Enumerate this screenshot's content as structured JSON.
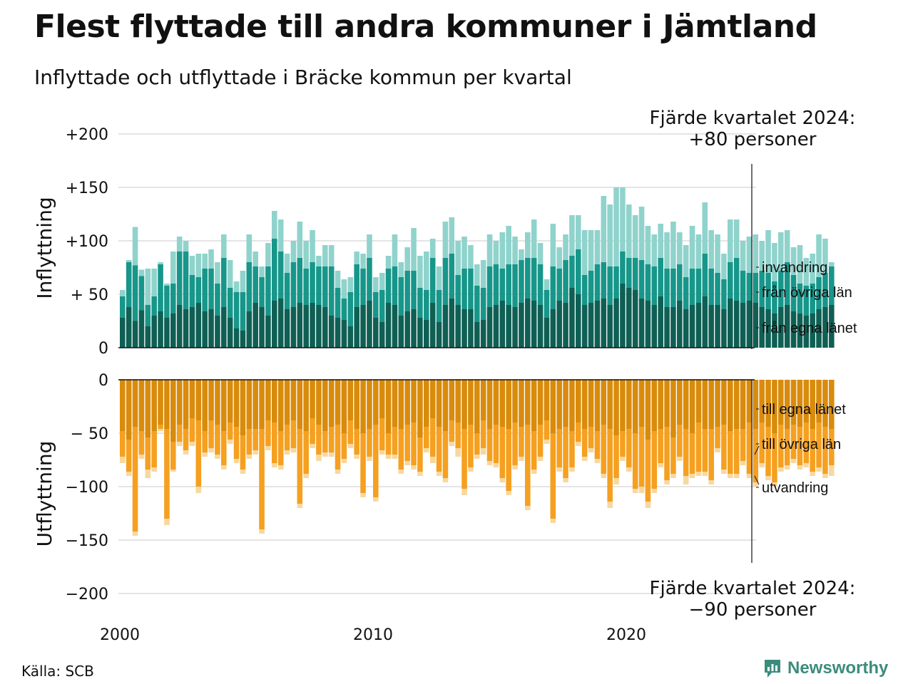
{
  "title": "Flest flyttade till andra kommuner i Jämtland",
  "subtitle": "Inflyttade och utflyttade i Bräcke kommun per kvartal",
  "source": "Källa: SCB",
  "brand": "Newsworthy",
  "colors": {
    "in_egna": "#0f5f54",
    "in_ovriga": "#17968a",
    "in_invandring": "#8fd3cc",
    "out_egna": "#d98b0c",
    "out_ovriga": "#f5a020",
    "out_utvandring": "#f8d8a0",
    "brand": "#3b8c7c"
  },
  "chart_data": {
    "type": "bar",
    "stacked": true,
    "x_start": 2000,
    "x_step": 0.25,
    "x_ticks": [
      "2000",
      "2010",
      "2020"
    ],
    "upper": {
      "ylabel": "Inflyttning",
      "ylim": [
        0,
        200
      ],
      "y_ticks": [
        "0",
        "+ 50",
        "+100",
        "+150",
        "+200"
      ],
      "annotation": "Fjärde kvartalet 2024:\n+80 personer",
      "series": [
        {
          "name": "från egna länet",
          "values": [
            28,
            38,
            25,
            35,
            20,
            30,
            34,
            28,
            32,
            40,
            36,
            38,
            42,
            34,
            36,
            30,
            38,
            28,
            18,
            16,
            34,
            42,
            38,
            30,
            44,
            46,
            36,
            38,
            42,
            40,
            42,
            40,
            38,
            30,
            28,
            26,
            20,
            38,
            40,
            44,
            28,
            24,
            42,
            40,
            30,
            34,
            36,
            28,
            26,
            42,
            24,
            40,
            46,
            40,
            36,
            36,
            24,
            26,
            38,
            40,
            44,
            40,
            38,
            42,
            46,
            44,
            40,
            28,
            36,
            44,
            42,
            56,
            50,
            40,
            42,
            44,
            46,
            40,
            46,
            60,
            56,
            54,
            46,
            44,
            40,
            48,
            38,
            38,
            44,
            36,
            40,
            42,
            48,
            40,
            40,
            36,
            46,
            44,
            42,
            44,
            42,
            38,
            36,
            32,
            38,
            40,
            34,
            32,
            30,
            32,
            36,
            38,
            40
          ]
        },
        {
          "name": "från övriga län",
          "values": [
            20,
            42,
            52,
            32,
            20,
            18,
            44,
            30,
            28,
            50,
            54,
            30,
            24,
            40,
            38,
            30,
            46,
            28,
            34,
            36,
            46,
            34,
            28,
            46,
            58,
            44,
            34,
            42,
            42,
            34,
            38,
            36,
            38,
            46,
            28,
            20,
            32,
            40,
            34,
            40,
            24,
            30,
            32,
            36,
            36,
            38,
            36,
            28,
            28,
            42,
            30,
            44,
            42,
            28,
            38,
            38,
            34,
            30,
            38,
            38,
            30,
            38,
            40,
            40,
            38,
            40,
            38,
            26,
            40,
            30,
            40,
            30,
            42,
            28,
            30,
            34,
            34,
            36,
            30,
            30,
            28,
            30,
            36,
            34,
            36,
            36,
            36,
            36,
            34,
            30,
            34,
            32,
            40,
            34,
            30,
            28,
            34,
            40,
            30,
            26,
            28,
            34,
            34,
            30,
            34,
            40,
            34,
            28,
            28,
            28,
            30,
            32,
            36
          ]
        },
        {
          "name": "invandring",
          "values": [
            6,
            2,
            36,
            6,
            34,
            26,
            2,
            2,
            30,
            14,
            10,
            18,
            22,
            14,
            18,
            20,
            22,
            26,
            10,
            20,
            26,
            14,
            10,
            22,
            26,
            30,
            18,
            20,
            34,
            26,
            30,
            10,
            20,
            20,
            16,
            18,
            14,
            12,
            14,
            22,
            14,
            16,
            12,
            30,
            14,
            22,
            40,
            30,
            36,
            18,
            22,
            34,
            34,
            32,
            30,
            22,
            20,
            26,
            30,
            22,
            34,
            36,
            26,
            10,
            24,
            36,
            20,
            10,
            40,
            20,
            24,
            38,
            32,
            42,
            38,
            32,
            62,
            58,
            74,
            60,
            50,
            40,
            50,
            36,
            30,
            32,
            34,
            44,
            30,
            30,
            40,
            32,
            48,
            36,
            36,
            24,
            40,
            36,
            28,
            34,
            36,
            28,
            40,
            36,
            36,
            30,
            26,
            36,
            26,
            28,
            40,
            32,
            4
          ]
        }
      ],
      "labels": [
        "invandring",
        "från övriga län",
        "från egna länet"
      ]
    },
    "lower": {
      "ylabel": "Utflyttning",
      "ylim": [
        -200,
        0
      ],
      "y_ticks": [
        "0",
        "− 50",
        "−100",
        "−150",
        "−200"
      ],
      "annotation": "Fjärde kvartalet 2024:\n−90 personer",
      "series": [
        {
          "name": "till egna länet",
          "values": [
            -48,
            -56,
            -44,
            -48,
            -54,
            -48,
            -42,
            -46,
            -58,
            -42,
            -46,
            -36,
            -38,
            -48,
            -38,
            -42,
            -48,
            -40,
            -44,
            -52,
            -46,
            -46,
            -46,
            -38,
            -40,
            -48,
            -42,
            -38,
            -46,
            -48,
            -36,
            -42,
            -48,
            -44,
            -42,
            -50,
            -38,
            -46,
            -50,
            -46,
            -42,
            -36,
            -50,
            -44,
            -46,
            -42,
            -40,
            -54,
            -44,
            -36,
            -44,
            -48,
            -38,
            -40,
            -46,
            -42,
            -50,
            -38,
            -46,
            -42,
            -44,
            -46,
            -40,
            -44,
            -42,
            -48,
            -42,
            -38,
            -50,
            -46,
            -44,
            -48,
            -40,
            -46,
            -44,
            -48,
            -42,
            -46,
            -52,
            -48,
            -46,
            -50,
            -44,
            -56,
            -48,
            -46,
            -44,
            -54,
            -42,
            -46,
            -50,
            -40,
            -46,
            -46,
            -44,
            -42,
            -48,
            -46,
            -46,
            -40,
            -46,
            -40,
            -44,
            -50,
            -42,
            -46,
            -42,
            -44,
            -40,
            -46,
            -40,
            -44,
            -46
          ]
        },
        {
          "name": "till övriga län",
          "values": [
            -24,
            -30,
            -98,
            -22,
            -30,
            -34,
            -4,
            -84,
            -26,
            -16,
            -20,
            -22,
            -62,
            -20,
            -26,
            -28,
            -32,
            -16,
            -30,
            -32,
            -24,
            -20,
            -94,
            -24,
            -38,
            -32,
            -24,
            -26,
            -70,
            -40,
            -24,
            -28,
            -20,
            -24,
            -42,
            -24,
            -22,
            -24,
            -56,
            -26,
            -68,
            -30,
            -20,
            -26,
            -38,
            -34,
            -40,
            -32,
            -20,
            -36,
            -42,
            -44,
            -20,
            -24,
            -56,
            -40,
            -20,
            -26,
            -30,
            -36,
            -48,
            -58,
            -40,
            -28,
            -76,
            -36,
            -30,
            -18,
            -80,
            -36,
            -48,
            -34,
            -18,
            -26,
            -20,
            -26,
            -46,
            -68,
            -40,
            -24,
            -36,
            -52,
            -56,
            -58,
            -54,
            -32,
            -50,
            -34,
            -30,
            -44,
            -38,
            -46,
            -40,
            -48,
            -20,
            -42,
            -40,
            -42,
            -30,
            -48,
            -50,
            -38,
            -46,
            -46,
            -40,
            -34,
            -32,
            -36,
            -38,
            -40,
            -42,
            -44,
            -34
          ]
        },
        {
          "name": "utvandring",
          "values": [
            -6,
            -4,
            -4,
            -4,
            -8,
            -4,
            -2,
            -6,
            -2,
            -4,
            -4,
            -4,
            -6,
            -4,
            -4,
            -4,
            -4,
            -4,
            -4,
            -4,
            -4,
            -4,
            -4,
            -4,
            -4,
            -4,
            -4,
            -4,
            -4,
            -4,
            -4,
            -6,
            -4,
            -4,
            -4,
            -4,
            -4,
            -4,
            -4,
            -4,
            -4,
            -4,
            -4,
            -4,
            -4,
            -4,
            -4,
            -4,
            -4,
            -6,
            -4,
            -4,
            -4,
            -8,
            -6,
            -4,
            -4,
            -6,
            -4,
            -4,
            -4,
            -4,
            -4,
            -4,
            -4,
            -4,
            -4,
            -4,
            -4,
            -4,
            -4,
            -4,
            -4,
            -4,
            -4,
            -4,
            -4,
            -6,
            -6,
            -4,
            -4,
            -4,
            -6,
            -6,
            -4,
            -4,
            -4,
            -4,
            -4,
            -8,
            -4,
            -4,
            -4,
            -4,
            -4,
            -4,
            -4,
            -4,
            -4,
            -4,
            -4,
            -4,
            -4,
            -4,
            -4,
            -4,
            -4,
            -4,
            -4,
            -4,
            -4,
            -4,
            -10
          ]
        }
      ],
      "labels": [
        "till egna länet",
        "till övriga län",
        "utvandring"
      ]
    }
  }
}
